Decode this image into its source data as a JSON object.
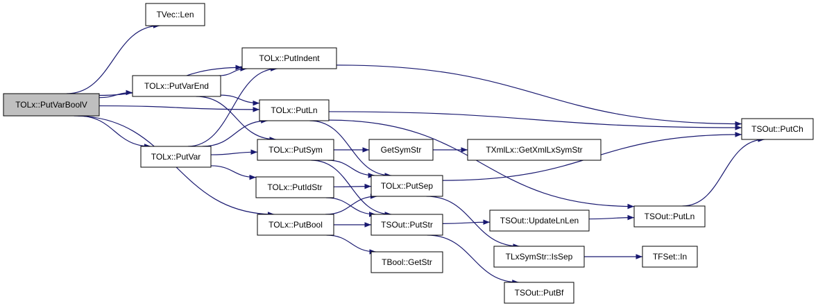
{
  "nodes": [
    {
      "label": "TOLx::PutVarBoolV"
    },
    {
      "label": "TVec::Len"
    },
    {
      "label": "TOLx::PutIndent"
    },
    {
      "label": "TOLx::PutVarEnd"
    },
    {
      "label": "TOLx::PutLn"
    },
    {
      "label": "TOLx::PutVar"
    },
    {
      "label": "TOLx::PutSym"
    },
    {
      "label": "GetSymStr"
    },
    {
      "label": "TXmlLx::GetXmlLxSymStr"
    },
    {
      "label": "TOLx::PutIdStr"
    },
    {
      "label": "TOLx::PutSep"
    },
    {
      "label": "TOLx::PutBool"
    },
    {
      "label": "TSOut::PutStr"
    },
    {
      "label": "TSOut::UpdateLnLen"
    },
    {
      "label": "TSOut::PutLn"
    },
    {
      "label": "TSOut::PutCh"
    },
    {
      "label": "TBool::GetStr"
    },
    {
      "label": "TLxSymStr::IsSep"
    },
    {
      "label": "TFSet::In"
    },
    {
      "label": "TSOut::PutBf"
    }
  ]
}
